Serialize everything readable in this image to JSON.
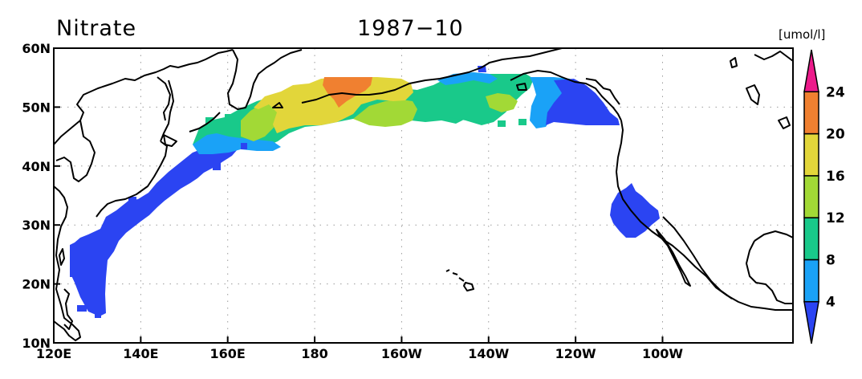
{
  "title": {
    "variable": "Nitrate",
    "date": "1987−10"
  },
  "colorbar": {
    "unit": "[umol/l]",
    "levels": [
      "4",
      "8",
      "12",
      "16",
      "20",
      "24"
    ],
    "colors": [
      "#2b44f2",
      "#1aa2f7",
      "#19c98a",
      "#a2d936",
      "#e2d63a",
      "#f08030",
      "#ec1b8b"
    ]
  },
  "map": {
    "lon_range": [
      120,
      290
    ],
    "lat_range": [
      10,
      60
    ],
    "xticks": [
      {
        "lon": 120,
        "label": "120E"
      },
      {
        "lon": 140,
        "label": "140E"
      },
      {
        "lon": 160,
        "label": "160E"
      },
      {
        "lon": 180,
        "label": "180"
      },
      {
        "lon": 200,
        "label": "160W"
      },
      {
        "lon": 220,
        "label": "140W"
      },
      {
        "lon": 240,
        "label": "120W"
      },
      {
        "lon": 260,
        "label": "100W"
      }
    ],
    "yticks": [
      {
        "lat": 10,
        "label": "10N"
      },
      {
        "lat": 20,
        "label": "20N"
      },
      {
        "lat": 30,
        "label": "30N"
      },
      {
        "lat": 40,
        "label": "40N"
      },
      {
        "lat": 50,
        "label": "50N"
      },
      {
        "lat": 60,
        "label": "60N"
      }
    ],
    "grid": true
  }
}
